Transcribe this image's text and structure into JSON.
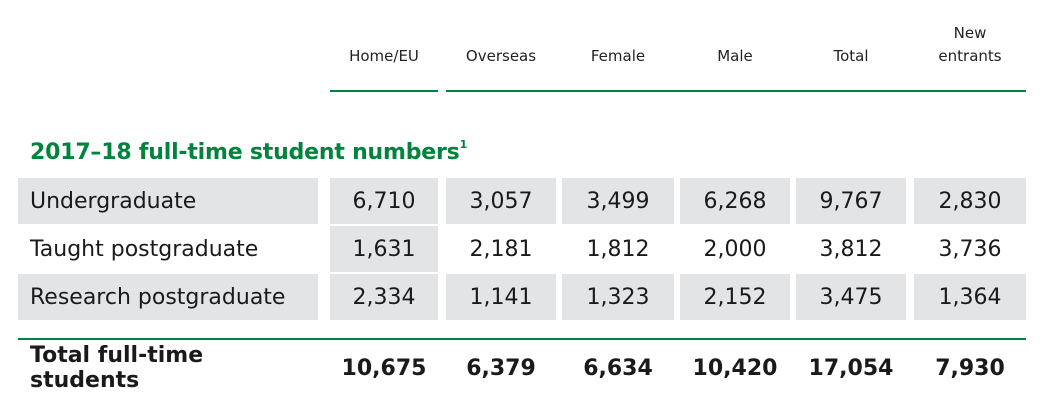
{
  "columns": [
    "Home/EU",
    "Overseas",
    "Female",
    "Male",
    "Total",
    "New entrants"
  ],
  "section_title": "2017–18 full-time student numbers",
  "section_footnote": "1",
  "rows": [
    {
      "label": "Undergraduate",
      "values": [
        "6,710",
        "3,057",
        "3,499",
        "6,268",
        "9,767",
        "2,830"
      ]
    },
    {
      "label": "Taught postgraduate",
      "values": [
        "1,631",
        "2,181",
        "1,812",
        "2,000",
        "3,812",
        "3,736"
      ]
    },
    {
      "label": "Research postgraduate",
      "values": [
        "2,334",
        "1,141",
        "1,323",
        "2,152",
        "3,475",
        "1,364"
      ]
    }
  ],
  "total": {
    "label": "Total full-time students",
    "values": [
      "10,675",
      "6,379",
      "6,634",
      "10,420",
      "17,054",
      "7,930"
    ]
  },
  "colors": {
    "accent": "#00843d",
    "shade": "#e3e4e6"
  }
}
